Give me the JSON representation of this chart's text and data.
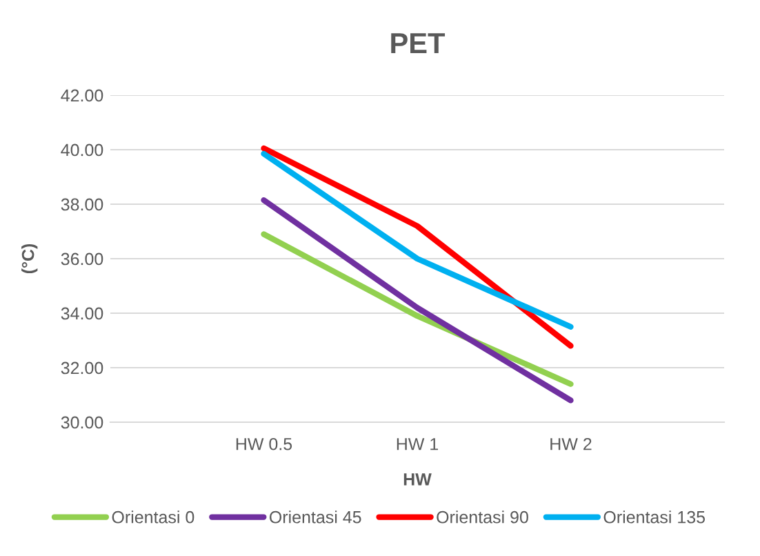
{
  "chart_data": {
    "type": "line",
    "title": "PET",
    "xlabel": "HW",
    "ylabel": "(°C)",
    "categories": [
      "HW 0.5",
      "HW 1",
      "HW 2"
    ],
    "series": [
      {
        "name": "Orientasi 0",
        "color": "#92d050",
        "values": [
          36.9,
          33.9,
          31.4
        ]
      },
      {
        "name": "Orientasi 45",
        "color": "#7030a0",
        "values": [
          38.15,
          34.2,
          30.8
        ]
      },
      {
        "name": "Orientasi 90",
        "color": "#ff0000",
        "values": [
          40.05,
          37.2,
          32.8
        ]
      },
      {
        "name": "Orientasi 135",
        "color": "#00b0f0",
        "values": [
          39.85,
          36.0,
          33.5
        ]
      }
    ],
    "ylim": [
      30,
      42
    ],
    "yticks": [
      {
        "value": 30,
        "label": "30.00"
      },
      {
        "value": 32,
        "label": "32.00"
      },
      {
        "value": 34,
        "label": "34.00"
      },
      {
        "value": 36,
        "label": "36.00"
      },
      {
        "value": 38,
        "label": "38.00"
      },
      {
        "value": 40,
        "label": "40.00"
      },
      {
        "value": 42,
        "label": "42.00"
      }
    ],
    "grid": "y",
    "legend": "bottom",
    "marker": "none",
    "line_style": "solid"
  }
}
